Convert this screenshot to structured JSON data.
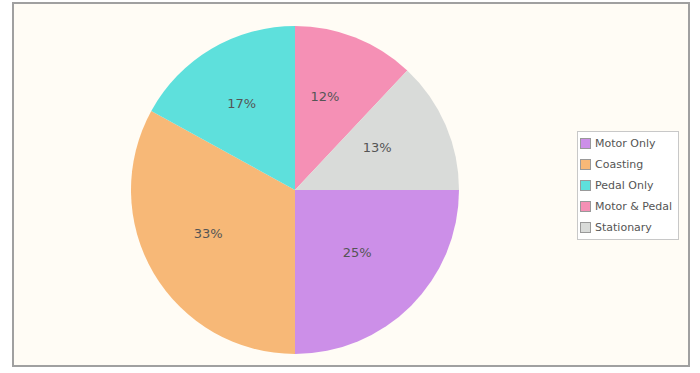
{
  "chart_data": {
    "type": "pie",
    "categories": [
      "Motor Only",
      "Coasting",
      "Pedal Only",
      "Motor & Pedal",
      "Stationary"
    ],
    "values": [
      25,
      33,
      17,
      12,
      13
    ],
    "value_labels": [
      "25%",
      "33%",
      "17%",
      "12%",
      "13%"
    ],
    "colors": [
      "#cc8fe8",
      "#f7b877",
      "#5ee0dc",
      "#f590b5",
      "#d9dbd9"
    ],
    "data_labels": true,
    "legend": "right"
  }
}
